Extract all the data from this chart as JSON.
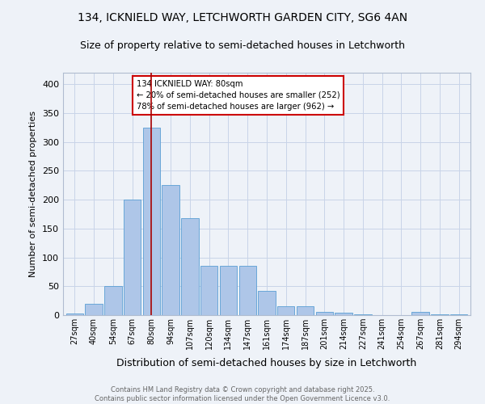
{
  "title1": "134, ICKNIELD WAY, LETCHWORTH GARDEN CITY, SG6 4AN",
  "title2": "Size of property relative to semi-detached houses in Letchworth",
  "xlabel": "Distribution of semi-detached houses by size in Letchworth",
  "ylabel": "Number of semi-detached properties",
  "categories": [
    "27sqm",
    "40sqm",
    "54sqm",
    "67sqm",
    "80sqm",
    "94sqm",
    "107sqm",
    "120sqm",
    "134sqm",
    "147sqm",
    "161sqm",
    "174sqm",
    "187sqm",
    "201sqm",
    "214sqm",
    "227sqm",
    "241sqm",
    "254sqm",
    "267sqm",
    "281sqm",
    "294sqm"
  ],
  "values": [
    3,
    20,
    50,
    200,
    325,
    225,
    168,
    85,
    85,
    85,
    42,
    15,
    15,
    5,
    4,
    1,
    0,
    0,
    5,
    2,
    1
  ],
  "bar_color": "#aec6e8",
  "bar_edge_color": "#5a9fd4",
  "grid_color": "#c8d4e8",
  "vline_x_index": 4,
  "vline_color": "#aa0000",
  "annotation_text": "134 ICKNIELD WAY: 80sqm\n← 20% of semi-detached houses are smaller (252)\n78% of semi-detached houses are larger (962) →",
  "annotation_box_color": "#cc0000",
  "ylim": [
    0,
    420
  ],
  "yticks": [
    0,
    50,
    100,
    150,
    200,
    250,
    300,
    350,
    400
  ],
  "footer": "Contains HM Land Registry data © Crown copyright and database right 2025.\nContains public sector information licensed under the Open Government Licence v3.0.",
  "bg_color": "#eef2f8",
  "title_fontsize": 10,
  "subtitle_fontsize": 9
}
